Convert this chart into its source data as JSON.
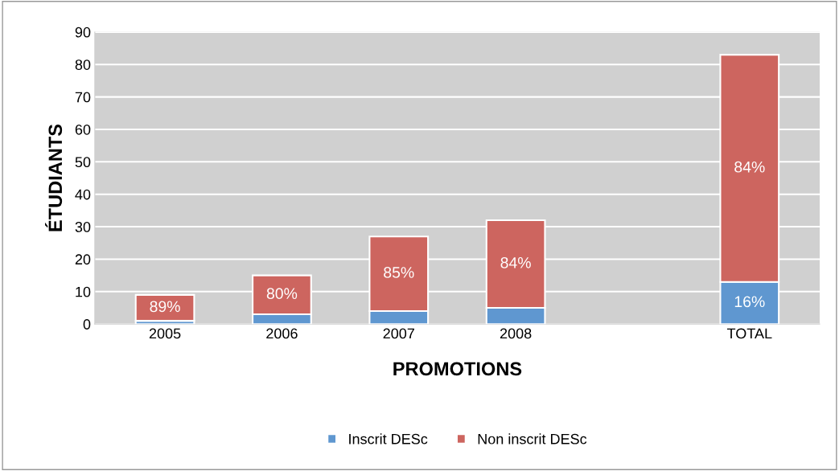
{
  "chart_data": {
    "type": "bar",
    "stacked": true,
    "xlabel": "PROMOTIONS",
    "ylabel": "ÉTUDIANTS",
    "categories": [
      "2005",
      "2006",
      "2007",
      "2008",
      null,
      "TOTAL"
    ],
    "series": [
      {
        "name": "Inscrit DESc",
        "color": "#5f97d0",
        "values": [
          1,
          3,
          4,
          5,
          null,
          13
        ]
      },
      {
        "name": "Non inscrit DESc",
        "color": "#cd655f",
        "values": [
          8,
          12,
          23,
          27,
          null,
          70
        ]
      }
    ],
    "annotations": [
      {
        "text": "89%",
        "x": "2005",
        "y": 9
      },
      {
        "text": "80%",
        "x": "2006",
        "y": 15
      },
      {
        "text": "85%",
        "x": "2007",
        "y": 27
      },
      {
        "text": "84%",
        "x": "2008",
        "y": 32
      },
      "84%",
      {
        "text": "16%",
        "x": "TOTAL",
        "y": 13
      }
    ],
    "ylim": [
      0,
      90
    ],
    "yticks": [
      0,
      10,
      20,
      30,
      40,
      50,
      60,
      70,
      80,
      90
    ],
    "grid": "y",
    "legend": "bottom"
  }
}
